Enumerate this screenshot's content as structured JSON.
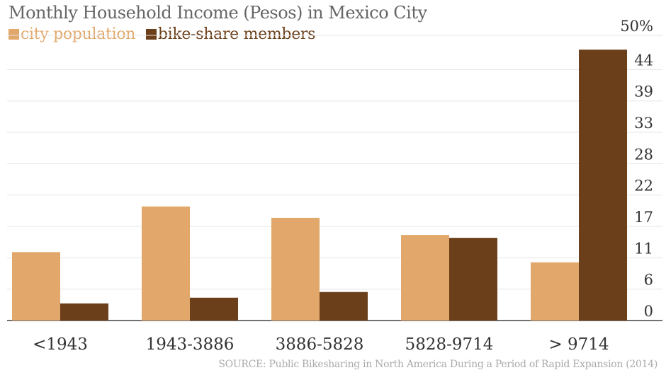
{
  "chart_data": {
    "type": "bar",
    "title": "Monthly Household Income (Pesos) in Mexico City",
    "categories": [
      "<1943",
      "1943-3886",
      "3886-5828",
      "5828-9714",
      "> 9714"
    ],
    "series": [
      {
        "name": "city population",
        "color": "#E2A76A",
        "values": [
          12.0,
          20.0,
          18.0,
          15.0,
          10.2
        ]
      },
      {
        "name": "bike-share members",
        "color": "#6B3F19",
        "values": [
          3.0,
          4.0,
          5.0,
          14.5,
          47.5
        ]
      }
    ],
    "ylim": [
      0,
      50
    ],
    "yticks": [
      {
        "value": 0,
        "label": "0"
      },
      {
        "value": 5.5,
        "label": "6"
      },
      {
        "value": 11,
        "label": "11"
      },
      {
        "value": 16.5,
        "label": "17"
      },
      {
        "value": 22,
        "label": "22"
      },
      {
        "value": 27.5,
        "label": "28"
      },
      {
        "value": 33,
        "label": "33"
      },
      {
        "value": 38.5,
        "label": "39"
      },
      {
        "value": 44,
        "label": "44"
      },
      {
        "value": 50,
        "label": "50%"
      }
    ],
    "grid": true,
    "yaxis_side": "right",
    "legend_position": "top-left",
    "source": "SOURCE: Public Bikesharing in North America During a Period of Rapid Expansion (2014)"
  }
}
